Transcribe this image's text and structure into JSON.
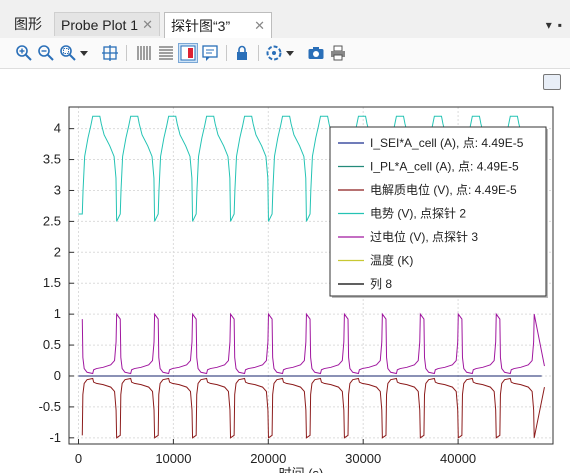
{
  "tabs": [
    {
      "label": "图形",
      "closable": false
    },
    {
      "label": "Probe Plot 1",
      "closable": true
    },
    {
      "label": "探针图“3”",
      "closable": true
    }
  ],
  "close_glyph": "✕",
  "tab_menu_glyphs": {
    "dropdown": "▾",
    "pin": "▪"
  },
  "toolbar": [
    "zoom-in-icon",
    "zoom-out-icon",
    "zoom-box-icon",
    "zoom-extents-icon",
    "grid-x-icon",
    "grid-y-icon",
    "legend-icon",
    "annotation-icon",
    "lock-icon",
    "camera-orbit-icon",
    "snapshot-icon",
    "print-icon"
  ],
  "colors": {
    "teal": "#24c3b4",
    "purple": "#a0179f",
    "darkred": "#8c1c1c",
    "blue": "#1b2f8f",
    "green": "#238a7a",
    "yellow": "#c8c832",
    "black": "#000000"
  },
  "chart_data": {
    "type": "line",
    "xlabel": "时间 (s)",
    "ylabel": "",
    "xlim": [
      -1000,
      50000
    ],
    "ylim": [
      -1.1,
      4.35
    ],
    "xticks": [
      0,
      10000,
      20000,
      30000,
      40000
    ],
    "xtick_labels": [
      "0",
      "10000",
      "20000",
      "30000",
      "40000"
    ],
    "yticks": [
      -1,
      -0.5,
      0,
      0.5,
      1,
      1.5,
      2,
      2.5,
      3,
      3.5,
      4
    ],
    "ytick_labels": [
      "-1",
      "-0.5",
      "0",
      "0.5",
      "1",
      "1.5",
      "2",
      "2.5",
      "3",
      "3.5",
      "4"
    ],
    "grid": true,
    "legend_position": "top-right",
    "series": [
      {
        "name": "I_SEI*A_cell (A), 点: 4.49E-5",
        "color": "#1b2f8f",
        "x": [
          0,
          49000
        ],
        "y": [
          0,
          0
        ]
      },
      {
        "name": "I_PL*A_cell (A), 点: 4.49E-5",
        "color": "#238a7a",
        "x": [
          0,
          49000
        ],
        "y": [
          0,
          0
        ]
      },
      {
        "name": "电解质电位 (V), 点: 4.49E-5",
        "color": "#8c1c1c",
        "x": [
          0,
          49000
        ],
        "y": [
          -0.05,
          -0.05
        ]
      },
      {
        "name": "电势 (V), 点探针 2",
        "color": "#24c3b4",
        "x": [
          0,
          49000
        ],
        "y": [
          3.0,
          3.0
        ]
      },
      {
        "name": "过电位 (V), 点探针 3",
        "color": "#a0179f",
        "x": [
          0,
          49000
        ],
        "y": [
          0.05,
          0.05
        ]
      },
      {
        "name": "温度 (K)",
        "color": "#c8c832",
        "x": [],
        "y": []
      },
      {
        "name": "列 8",
        "color": "#000000",
        "x": [
          0,
          49000
        ],
        "y": [
          0,
          0
        ]
      }
    ]
  }
}
